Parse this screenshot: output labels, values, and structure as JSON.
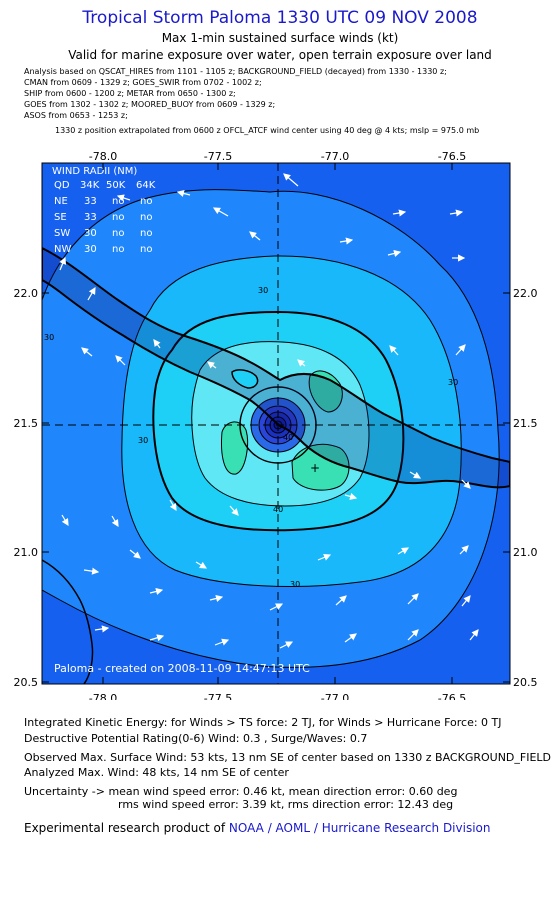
{
  "header": {
    "title": "Tropical Storm Paloma 1330 UTC 09 NOV 2008",
    "subtitle1": "Max 1-min sustained surface winds (kt)",
    "subtitle2": "Valid for marine exposure over water, open terrain exposure over land"
  },
  "analysis_lines": [
    "Analysis based on  QSCAT_HIRES from 1101 - 1105 z;  BACKGROUND_FIELD (decayed) from 1330 - 1330 z;",
    "CMAN from 0609 - 1329 z;  GOES_SWIR from 0702 - 1002 z;",
    "SHIP from 0600 - 1200 z;  METAR from 0650 - 1300 z;",
    "GOES from 1302 - 1302 z;  MOORED_BUOY from 0609 - 1329 z;",
    "ASOS from 0653 - 1253 z;"
  ],
  "position_line": "1330 z position extrapolated from 0600 z OFCL_ATCF wind center using 40 deg @ 4 kts; mslp = 975.0 mb",
  "map": {
    "lon_labels": [
      "-78.0",
      "-77.5",
      "-77.0",
      "-76.5"
    ],
    "lat_labels": [
      "22.0",
      "21.5",
      "21.0",
      "20.5"
    ],
    "contour_labels": [
      "30",
      "30",
      "30",
      "30",
      "30",
      "40",
      "40"
    ],
    "wind_radii": {
      "title": "WIND RADII (NM)",
      "header": [
        "QD",
        "34K",
        "50K",
        "64K"
      ],
      "rows": [
        [
          "NE",
          "33",
          "no",
          "no"
        ],
        [
          "SE",
          "33",
          "no",
          "no"
        ],
        [
          "SW",
          "30",
          "no",
          "no"
        ],
        [
          "NW",
          "30",
          "no",
          "no"
        ]
      ]
    },
    "created_text": "Paloma - created on 2008-11-09 14:47:13 UTC",
    "center": {
      "lon": -77.24,
      "lat": 21.48
    },
    "max_wind_marker": {
      "lon": -77.09,
      "lat": 21.33
    },
    "colors": {
      "background": "#1560ef",
      "band_20_30": "#1f87fb",
      "band_30_40": "#18b8fb",
      "band_40_45": "#1ed0f5",
      "band_45_50": "#5fe7f5",
      "band_50_plus": "#38e0b4",
      "inner_core": "#2a45d9",
      "land": "#10106a",
      "title_blue": "#1a1acc"
    }
  },
  "footer": {
    "ike": "Integrated Kinetic Energy:  for Winds > TS force: 2 TJ,  for Winds > Hurricane Force: 0 TJ",
    "dpr": "Destructive Potential Rating(0-6)   Wind: 0.3 , Surge/Waves: 0.7",
    "observed": "Observed Max. Surface Wind: 53 kts, 13 nm SE of center based on 1330 z BACKGROUND_FIELD",
    "analyzed": "Analyzed Max. Wind: 48 kts, 14 nm SE of center",
    "uncertainty1": "Uncertainty -> mean wind speed error: 0.46 kt,   mean direction error: 0.60 deg",
    "uncertainty2": "rms wind speed error: 3.39 kt,   rms direction error: 12.43 deg",
    "credit_prefix": "Experimental research product of ",
    "credit_link": "NOAA / AOML / Hurricane Research Division"
  }
}
